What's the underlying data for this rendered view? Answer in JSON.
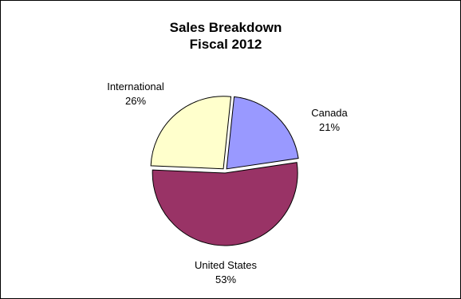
{
  "chart_data": {
    "type": "pie",
    "title": "Sales Breakdown",
    "subtitle": "Fiscal 2012",
    "slices": [
      {
        "name": "Canada",
        "value": 21,
        "value_label": "21%",
        "color": "#9999FF"
      },
      {
        "name": "United States",
        "value": 53,
        "value_label": "53%",
        "color": "#993366"
      },
      {
        "name": "International",
        "value": 26,
        "value_label": "26%",
        "color": "#FFFFCC"
      }
    ],
    "start_angle_deg": 6,
    "exploded": true,
    "legend": "none"
  }
}
